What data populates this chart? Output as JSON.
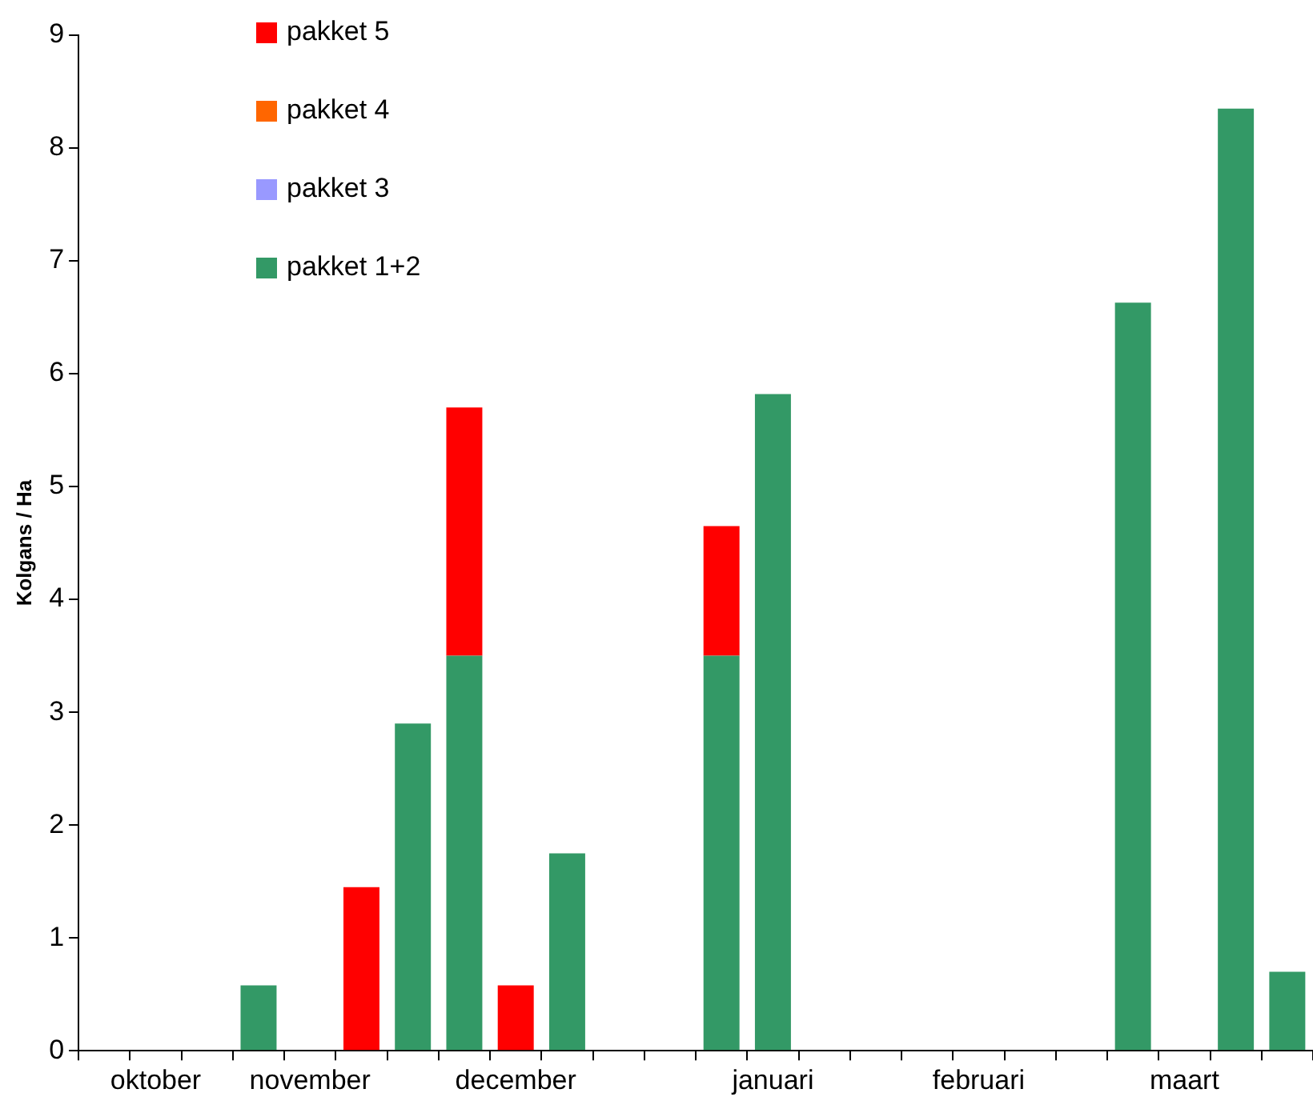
{
  "chart_data": {
    "type": "bar",
    "ylabel": "Kolgans / Ha",
    "stacked": true,
    "categories": [
      null,
      "oktober",
      null,
      null,
      "november",
      null,
      null,
      null,
      "december",
      null,
      null,
      null,
      null,
      "januari",
      null,
      null,
      null,
      "februari",
      null,
      null,
      null,
      "maart",
      null,
      null
    ],
    "series": [
      {
        "name": "pakket 1+2",
        "color": "#339966",
        "values": [
          null,
          null,
          null,
          0.58,
          null,
          null,
          2.9,
          3.5,
          null,
          1.75,
          null,
          null,
          3.5,
          5.82,
          null,
          null,
          null,
          null,
          null,
          null,
          6.63,
          null,
          8.35,
          0.7
        ]
      },
      {
        "name": "pakket 3",
        "color": "#9999ff",
        "values": [
          null,
          null,
          null,
          null,
          null,
          null,
          null,
          null,
          null,
          null,
          null,
          null,
          null,
          null,
          null,
          null,
          null,
          null,
          null,
          null,
          null,
          null,
          null,
          null
        ]
      },
      {
        "name": "pakket 4",
        "color": "#ff6600",
        "values": [
          null,
          null,
          null,
          null,
          null,
          null,
          null,
          null,
          null,
          null,
          null,
          null,
          null,
          null,
          null,
          null,
          null,
          null,
          null,
          null,
          null,
          null,
          null,
          null
        ]
      },
      {
        "name": "pakket 5",
        "color": "#ff0000",
        "values": [
          null,
          null,
          null,
          null,
          null,
          1.45,
          null,
          2.2,
          0.58,
          null,
          null,
          null,
          1.15,
          null,
          null,
          null,
          null,
          null,
          null,
          null,
          null,
          null,
          null,
          null
        ]
      }
    ],
    "ylim": [
      0,
      9
    ],
    "yticks": [
      0,
      1,
      2,
      3,
      4,
      5,
      6,
      7,
      8,
      9
    ],
    "grid": false,
    "legend": "top left"
  }
}
